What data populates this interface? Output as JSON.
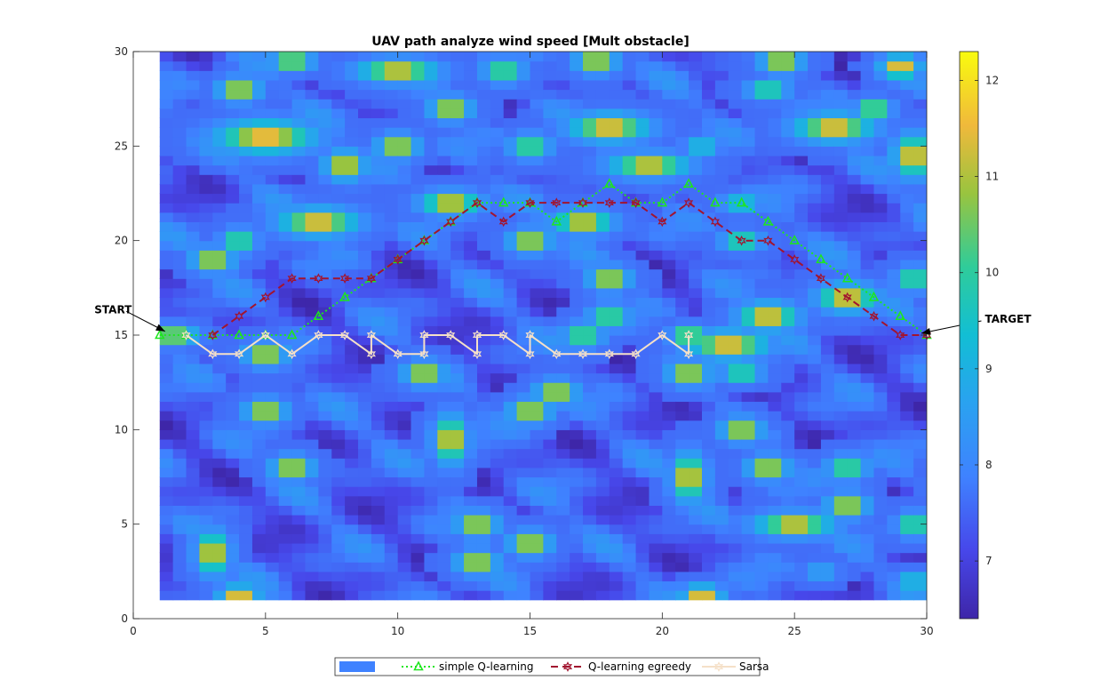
{
  "chart_data": {
    "type": "heatmap",
    "title": "UAV path analyze wind speed [Mult obstacle]",
    "xlim": [
      0,
      30
    ],
    "ylim": [
      0,
      30
    ],
    "xticks": [
      0,
      5,
      10,
      15,
      20,
      25,
      30
    ],
    "yticks": [
      0,
      5,
      10,
      15,
      20,
      25,
      30
    ],
    "field_extent": {
      "x": [
        1,
        30
      ],
      "y": [
        1,
        30
      ]
    },
    "colorbar": {
      "range": [
        6.4,
        12.3
      ],
      "ticks": [
        7,
        8,
        9,
        10,
        11,
        12
      ],
      "colormap": "parula"
    },
    "wind_hotspots": [
      {
        "x": 6,
        "y": 29.5,
        "dx": 0.6,
        "dy": 0.4,
        "v": 12
      },
      {
        "x": 10,
        "y": 29,
        "dx": 1.2,
        "dy": 0.5,
        "v": 12
      },
      {
        "x": 14,
        "y": 29,
        "dx": 0.6,
        "dy": 0.5,
        "v": 11
      },
      {
        "x": 4,
        "y": 28,
        "dx": 0.6,
        "dy": 0.5,
        "v": 12
      },
      {
        "x": 12,
        "y": 27,
        "dx": 0.6,
        "dy": 0.5,
        "v": 12
      },
      {
        "x": 17.5,
        "y": 29.5,
        "dx": 0.6,
        "dy": 0.5,
        "v": 12
      },
      {
        "x": 5,
        "y": 25.5,
        "dx": 1.5,
        "dy": 0.7,
        "v": 12
      },
      {
        "x": 10,
        "y": 25,
        "dx": 0.6,
        "dy": 0.5,
        "v": 12
      },
      {
        "x": 18,
        "y": 26,
        "dx": 1.2,
        "dy": 0.6,
        "v": 12
      },
      {
        "x": 8,
        "y": 24,
        "dx": 0.6,
        "dy": 0.6,
        "v": 12
      },
      {
        "x": 19.5,
        "y": 24,
        "dx": 1.2,
        "dy": 0.5,
        "v": 12
      },
      {
        "x": 15,
        "y": 25,
        "dx": 0.6,
        "dy": 0.5,
        "v": 11
      },
      {
        "x": 21.5,
        "y": 25,
        "dx": 0.5,
        "dy": 0.4,
        "v": 10
      },
      {
        "x": 24.5,
        "y": 29.5,
        "dx": 0.6,
        "dy": 0.5,
        "v": 12
      },
      {
        "x": 26.5,
        "y": 26,
        "dx": 1.2,
        "dy": 0.6,
        "v": 12
      },
      {
        "x": 28,
        "y": 27,
        "dx": 0.5,
        "dy": 0.4,
        "v": 12
      },
      {
        "x": 29,
        "y": 29.2,
        "dx": 0.6,
        "dy": 0.5,
        "v": 12
      },
      {
        "x": 29.5,
        "y": 24.5,
        "dx": 0.6,
        "dy": 0.9,
        "v": 12
      },
      {
        "x": 24,
        "y": 28,
        "dx": 0.6,
        "dy": 0.4,
        "v": 11
      },
      {
        "x": 12,
        "y": 22,
        "dx": 0.9,
        "dy": 0.5,
        "v": 12
      },
      {
        "x": 7,
        "y": 21,
        "dx": 1.2,
        "dy": 0.6,
        "v": 12
      },
      {
        "x": 3,
        "y": 19,
        "dx": 0.6,
        "dy": 0.5,
        "v": 12
      },
      {
        "x": 4,
        "y": 20,
        "dx": 0.5,
        "dy": 0.5,
        "v": 11
      },
      {
        "x": 17,
        "y": 21,
        "dx": 0.9,
        "dy": 0.5,
        "v": 12
      },
      {
        "x": 15,
        "y": 20,
        "dx": 0.6,
        "dy": 0.5,
        "v": 12
      },
      {
        "x": 23,
        "y": 20,
        "dx": 0.6,
        "dy": 0.4,
        "v": 11
      },
      {
        "x": 23,
        "y": 22,
        "dx": 0.6,
        "dy": 0.4,
        "v": 10
      },
      {
        "x": 18,
        "y": 18,
        "dx": 0.6,
        "dy": 0.5,
        "v": 12
      },
      {
        "x": 18,
        "y": 16,
        "dx": 0.6,
        "dy": 0.5,
        "v": 11
      },
      {
        "x": 24,
        "y": 16,
        "dx": 0.9,
        "dy": 0.6,
        "v": 12
      },
      {
        "x": 27,
        "y": 17,
        "dx": 0.9,
        "dy": 0.6,
        "v": 12
      },
      {
        "x": 29.5,
        "y": 18,
        "dx": 0.5,
        "dy": 0.5,
        "v": 11
      },
      {
        "x": 1.5,
        "y": 15,
        "dx": 0.7,
        "dy": 0.4,
        "v": 12
      },
      {
        "x": 5,
        "y": 14,
        "dx": 0.6,
        "dy": 0.5,
        "v": 12
      },
      {
        "x": 17,
        "y": 15,
        "dx": 0.6,
        "dy": 0.5,
        "v": 11
      },
      {
        "x": 21,
        "y": 15,
        "dx": 0.5,
        "dy": 0.4,
        "v": 12
      },
      {
        "x": 22.5,
        "y": 14.5,
        "dx": 1.2,
        "dy": 0.6,
        "v": 12
      },
      {
        "x": 11,
        "y": 13,
        "dx": 0.6,
        "dy": 0.5,
        "v": 12
      },
      {
        "x": 21,
        "y": 13,
        "dx": 0.6,
        "dy": 0.5,
        "v": 12
      },
      {
        "x": 23,
        "y": 13,
        "dx": 0.6,
        "dy": 0.4,
        "v": 11
      },
      {
        "x": 16,
        "y": 12,
        "dx": 0.6,
        "dy": 0.5,
        "v": 12
      },
      {
        "x": 5,
        "y": 11,
        "dx": 0.6,
        "dy": 0.5,
        "v": 12
      },
      {
        "x": 15,
        "y": 11,
        "dx": 0.6,
        "dy": 0.5,
        "v": 12
      },
      {
        "x": 12,
        "y": 9.5,
        "dx": 0.5,
        "dy": 1.0,
        "v": 12
      },
      {
        "x": 23,
        "y": 10,
        "dx": 0.6,
        "dy": 0.5,
        "v": 12
      },
      {
        "x": 6,
        "y": 8,
        "dx": 0.6,
        "dy": 0.5,
        "v": 12
      },
      {
        "x": 21,
        "y": 7.5,
        "dx": 0.5,
        "dy": 1.0,
        "v": 12
      },
      {
        "x": 24,
        "y": 8,
        "dx": 0.6,
        "dy": 0.5,
        "v": 12
      },
      {
        "x": 27,
        "y": 8,
        "dx": 0.6,
        "dy": 0.5,
        "v": 11
      },
      {
        "x": 27,
        "y": 6,
        "dx": 0.6,
        "dy": 0.5,
        "v": 12
      },
      {
        "x": 25,
        "y": 5,
        "dx": 1.2,
        "dy": 0.5,
        "v": 12
      },
      {
        "x": 29.5,
        "y": 5,
        "dx": 0.5,
        "dy": 0.5,
        "v": 11
      },
      {
        "x": 13,
        "y": 5,
        "dx": 0.6,
        "dy": 0.5,
        "v": 12
      },
      {
        "x": 15,
        "y": 4,
        "dx": 0.6,
        "dy": 0.5,
        "v": 12
      },
      {
        "x": 3,
        "y": 3.5,
        "dx": 0.5,
        "dy": 0.9,
        "v": 12
      },
      {
        "x": 13,
        "y": 3,
        "dx": 0.6,
        "dy": 0.5,
        "v": 12
      },
      {
        "x": 4,
        "y": 1.3,
        "dx": 0.6,
        "dy": 0.4,
        "v": 12
      },
      {
        "x": 21.5,
        "y": 1.3,
        "dx": 0.6,
        "dy": 0.4,
        "v": 12
      },
      {
        "x": 29.5,
        "y": 2,
        "dx": 0.5,
        "dy": 0.4,
        "v": 10
      },
      {
        "x": 26,
        "y": 2.5,
        "dx": 0.5,
        "dy": 0.4,
        "v": 9
      }
    ],
    "series": [
      {
        "name": "simple Q-learning",
        "color": "#1ee61e",
        "dash": "dotted",
        "marker": "triangle",
        "x": [
          1,
          2,
          3,
          4,
          5,
          6,
          7,
          8,
          9,
          10,
          11,
          12,
          13,
          14,
          15,
          16,
          17,
          18,
          19,
          20,
          21,
          22,
          23,
          24,
          25,
          26,
          27,
          28,
          29,
          30
        ],
        "y": [
          15,
          15,
          15,
          15,
          15,
          15,
          16,
          17,
          18,
          19,
          20,
          21,
          22,
          22,
          22,
          21,
          22,
          23,
          22,
          22,
          23,
          22,
          22,
          21,
          20,
          19,
          18,
          17,
          16,
          15
        ]
      },
      {
        "name": "Q-learning egreedy",
        "color": "#a2142f",
        "dash": "dashed",
        "marker": "hexagram",
        "x": [
          3,
          4,
          5,
          6,
          7,
          8,
          9,
          10,
          11,
          12,
          13,
          14,
          15,
          16,
          17,
          18,
          19,
          20,
          21,
          22,
          23,
          24,
          25,
          26,
          27,
          28,
          29,
          30
        ],
        "y": [
          15,
          16,
          17,
          18,
          18,
          18,
          18,
          19,
          20,
          21,
          22,
          21,
          22,
          22,
          22,
          22,
          22,
          21,
          22,
          21,
          20,
          20,
          19,
          18,
          17,
          16,
          15,
          15
        ]
      },
      {
        "name": "Sarsa",
        "color": "#f5e0c8",
        "dash": "solid",
        "marker": "hexagram",
        "x": [
          2,
          3,
          4,
          5,
          6,
          7,
          8,
          9,
          9,
          10,
          11,
          11,
          12,
          13,
          13,
          14,
          15,
          15,
          16,
          17,
          18,
          19,
          20,
          21,
          21
        ],
        "y": [
          15,
          14,
          14,
          15,
          14,
          15,
          15,
          14,
          15,
          14,
          14,
          15,
          15,
          14,
          15,
          15,
          14,
          15,
          14,
          14,
          14,
          14,
          15,
          14,
          15
        ]
      }
    ],
    "annotations": [
      {
        "text": "START",
        "tx": -1.2,
        "ty": 16.3,
        "ax": 1.2,
        "ay": 15.2
      },
      {
        "text": "TARGET",
        "tx": 32.2,
        "ty": 15.8,
        "ax": 29.8,
        "ay": 15.1
      }
    ],
    "legend": {
      "placement": "bottom-center",
      "entries": [
        {
          "label": "",
          "kind": "patch",
          "color": "#3f82ff"
        },
        {
          "label": "simple Q-learning",
          "kind": "series",
          "series": 0
        },
        {
          "label": "Q-learning egreedy",
          "kind": "series",
          "series": 1
        },
        {
          "label": "Sarsa",
          "kind": "series",
          "series": 2
        }
      ]
    }
  }
}
